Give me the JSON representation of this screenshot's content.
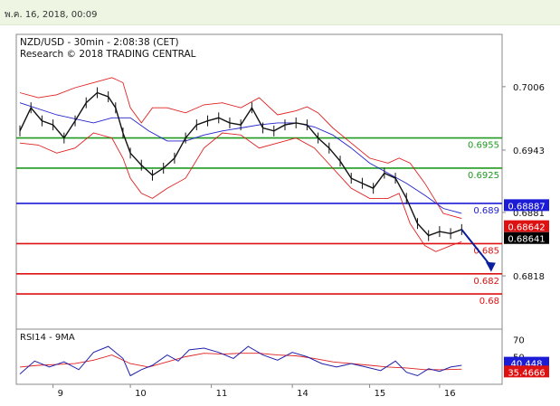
{
  "header": {
    "date_label": "พ.ค. 16, 2018, 00:09"
  },
  "chart_data": {
    "type": "line",
    "title": "NZD/USD - 30min - 2:08:38 (CET)",
    "subtitle": "Research © 2018 TRADING CENTRAL",
    "x_ticks": [
      "9",
      "10",
      "11",
      "14",
      "15",
      "16"
    ],
    "y_ticks": [
      "0.7006",
      "0.6943",
      "0.6881",
      "0.6818"
    ],
    "ylim": [
      0.6765,
      0.7058
    ],
    "levels": [
      {
        "label": "0.6955",
        "value": 0.6955,
        "color": "#1f9a1f"
      },
      {
        "label": "0.6925",
        "value": 0.6925,
        "color": "#1f9a1f"
      },
      {
        "label": "0.689",
        "value": 0.689,
        "color": "#1c1cd6"
      },
      {
        "label": "0.685",
        "value": 0.685,
        "color": "#dd1111"
      },
      {
        "label": "0.682",
        "value": 0.682,
        "color": "#dd1111"
      },
      {
        "label": "0.68",
        "value": 0.68,
        "color": "#dd1111"
      }
    ],
    "price_tags": [
      {
        "label": "0.68887",
        "value": 0.68887,
        "color": "#1c1cd6"
      },
      {
        "label": "0.68642",
        "value": 0.68642,
        "color": "#dd1111"
      },
      {
        "label": "0.68641",
        "value": 0.68641,
        "color": "#000000"
      }
    ],
    "price_series": [
      {
        "x": 0,
        "y": 0.6962
      },
      {
        "x": 0.3,
        "y": 0.6985
      },
      {
        "x": 0.6,
        "y": 0.6972
      },
      {
        "x": 0.9,
        "y": 0.6968
      },
      {
        "x": 1.2,
        "y": 0.6955
      },
      {
        "x": 1.5,
        "y": 0.6972
      },
      {
        "x": 1.8,
        "y": 0.699
      },
      {
        "x": 2.1,
        "y": 0.7
      },
      {
        "x": 2.4,
        "y": 0.6996
      },
      {
        "x": 2.6,
        "y": 0.6985
      },
      {
        "x": 2.8,
        "y": 0.696
      },
      {
        "x": 3.0,
        "y": 0.694
      },
      {
        "x": 3.3,
        "y": 0.6928
      },
      {
        "x": 3.6,
        "y": 0.6918
      },
      {
        "x": 3.9,
        "y": 0.6925
      },
      {
        "x": 4.2,
        "y": 0.6935
      },
      {
        "x": 4.5,
        "y": 0.6955
      },
      {
        "x": 4.8,
        "y": 0.6968
      },
      {
        "x": 5.1,
        "y": 0.6972
      },
      {
        "x": 5.4,
        "y": 0.6975
      },
      {
        "x": 5.7,
        "y": 0.697
      },
      {
        "x": 6.0,
        "y": 0.6968
      },
      {
        "x": 6.3,
        "y": 0.6985
      },
      {
        "x": 6.6,
        "y": 0.6965
      },
      {
        "x": 6.9,
        "y": 0.6962
      },
      {
        "x": 7.2,
        "y": 0.6968
      },
      {
        "x": 7.5,
        "y": 0.697
      },
      {
        "x": 7.8,
        "y": 0.6968
      },
      {
        "x": 8.1,
        "y": 0.6955
      },
      {
        "x": 8.4,
        "y": 0.6945
      },
      {
        "x": 8.7,
        "y": 0.6932
      },
      {
        "x": 9.0,
        "y": 0.6915
      },
      {
        "x": 9.3,
        "y": 0.691
      },
      {
        "x": 9.6,
        "y": 0.6905
      },
      {
        "x": 9.9,
        "y": 0.692
      },
      {
        "x": 10.2,
        "y": 0.6915
      },
      {
        "x": 10.5,
        "y": 0.6895
      },
      {
        "x": 10.8,
        "y": 0.687
      },
      {
        "x": 11.1,
        "y": 0.6858
      },
      {
        "x": 11.4,
        "y": 0.6862
      },
      {
        "x": 11.7,
        "y": 0.686
      },
      {
        "x": 12.0,
        "y": 0.6864
      }
    ],
    "bb_upper": [
      {
        "x": 0,
        "y": 0.7
      },
      {
        "x": 0.5,
        "y": 0.6995
      },
      {
        "x": 1.0,
        "y": 0.6998
      },
      {
        "x": 1.5,
        "y": 0.7005
      },
      {
        "x": 2.0,
        "y": 0.701
      },
      {
        "x": 2.5,
        "y": 0.7015
      },
      {
        "x": 2.8,
        "y": 0.701
      },
      {
        "x": 3.0,
        "y": 0.6985
      },
      {
        "x": 3.3,
        "y": 0.697
      },
      {
        "x": 3.6,
        "y": 0.6985
      },
      {
        "x": 4.0,
        "y": 0.6985
      },
      {
        "x": 4.5,
        "y": 0.698
      },
      {
        "x": 5.0,
        "y": 0.6988
      },
      {
        "x": 5.5,
        "y": 0.699
      },
      {
        "x": 6.0,
        "y": 0.6985
      },
      {
        "x": 6.5,
        "y": 0.6995
      },
      {
        "x": 7.0,
        "y": 0.6978
      },
      {
        "x": 7.5,
        "y": 0.6982
      },
      {
        "x": 7.8,
        "y": 0.6986
      },
      {
        "x": 8.1,
        "y": 0.698
      },
      {
        "x": 8.5,
        "y": 0.6965
      },
      {
        "x": 9.0,
        "y": 0.695
      },
      {
        "x": 9.5,
        "y": 0.6935
      },
      {
        "x": 10.0,
        "y": 0.693
      },
      {
        "x": 10.3,
        "y": 0.6935
      },
      {
        "x": 10.6,
        "y": 0.693
      },
      {
        "x": 11.0,
        "y": 0.691
      },
      {
        "x": 11.5,
        "y": 0.688
      },
      {
        "x": 12.0,
        "y": 0.6875
      }
    ],
    "bb_lower": [
      {
        "x": 0,
        "y": 0.695
      },
      {
        "x": 0.5,
        "y": 0.6948
      },
      {
        "x": 1.0,
        "y": 0.694
      },
      {
        "x": 1.5,
        "y": 0.6945
      },
      {
        "x": 2.0,
        "y": 0.696
      },
      {
        "x": 2.5,
        "y": 0.6955
      },
      {
        "x": 2.8,
        "y": 0.6935
      },
      {
        "x": 3.0,
        "y": 0.6915
      },
      {
        "x": 3.3,
        "y": 0.69
      },
      {
        "x": 3.6,
        "y": 0.6895
      },
      {
        "x": 4.0,
        "y": 0.6905
      },
      {
        "x": 4.5,
        "y": 0.6915
      },
      {
        "x": 5.0,
        "y": 0.6945
      },
      {
        "x": 5.5,
        "y": 0.696
      },
      {
        "x": 6.0,
        "y": 0.6958
      },
      {
        "x": 6.5,
        "y": 0.6945
      },
      {
        "x": 7.0,
        "y": 0.695
      },
      {
        "x": 7.5,
        "y": 0.6955
      },
      {
        "x": 8.0,
        "y": 0.6945
      },
      {
        "x": 8.5,
        "y": 0.6925
      },
      {
        "x": 9.0,
        "y": 0.6905
      },
      {
        "x": 9.5,
        "y": 0.6895
      },
      {
        "x": 10.0,
        "y": 0.6895
      },
      {
        "x": 10.3,
        "y": 0.69
      },
      {
        "x": 10.6,
        "y": 0.687
      },
      {
        "x": 11.0,
        "y": 0.6848
      },
      {
        "x": 11.3,
        "y": 0.6842
      },
      {
        "x": 11.7,
        "y": 0.6848
      },
      {
        "x": 12.0,
        "y": 0.6852
      }
    ],
    "ma_line": [
      {
        "x": 0,
        "y": 0.699
      },
      {
        "x": 1.0,
        "y": 0.6978
      },
      {
        "x": 2.0,
        "y": 0.697
      },
      {
        "x": 2.5,
        "y": 0.6975
      },
      {
        "x": 3.0,
        "y": 0.6975
      },
      {
        "x": 3.5,
        "y": 0.6962
      },
      {
        "x": 4.0,
        "y": 0.6952
      },
      {
        "x": 4.5,
        "y": 0.6952
      },
      {
        "x": 5.0,
        "y": 0.6958
      },
      {
        "x": 5.5,
        "y": 0.6962
      },
      {
        "x": 6.0,
        "y": 0.6965
      },
      {
        "x": 6.5,
        "y": 0.6968
      },
      {
        "x": 7.0,
        "y": 0.697
      },
      {
        "x": 7.5,
        "y": 0.697
      },
      {
        "x": 8.0,
        "y": 0.6966
      },
      {
        "x": 8.5,
        "y": 0.6958
      },
      {
        "x": 9.0,
        "y": 0.6945
      },
      {
        "x": 9.5,
        "y": 0.693
      },
      {
        "x": 10.0,
        "y": 0.692
      },
      {
        "x": 10.5,
        "y": 0.691
      },
      {
        "x": 11.0,
        "y": 0.6898
      },
      {
        "x": 11.5,
        "y": 0.6885
      },
      {
        "x": 12.0,
        "y": 0.688
      }
    ],
    "projection": [
      {
        "x": 12.0,
        "y": 0.6864
      },
      {
        "x": 12.8,
        "y": 0.6822
      }
    ],
    "rsi": {
      "label": "RSI14 - 9MA",
      "y_ticks": [
        "70",
        "50"
      ],
      "ylim": [
        18,
        82
      ],
      "value_tags": [
        {
          "label": "40.448",
          "value": 40.448,
          "color": "#1c1cd6"
        },
        {
          "label": "35.4666",
          "value": 35.4666,
          "color": "#dd1111"
        }
      ],
      "series": [
        {
          "x": 0,
          "y": 30
        },
        {
          "x": 0.4,
          "y": 45
        },
        {
          "x": 0.8,
          "y": 38
        },
        {
          "x": 1.2,
          "y": 44
        },
        {
          "x": 1.6,
          "y": 35
        },
        {
          "x": 2.0,
          "y": 55
        },
        {
          "x": 2.4,
          "y": 62
        },
        {
          "x": 2.8,
          "y": 48
        },
        {
          "x": 3.0,
          "y": 28
        },
        {
          "x": 3.3,
          "y": 35
        },
        {
          "x": 3.6,
          "y": 40
        },
        {
          "x": 4.0,
          "y": 52
        },
        {
          "x": 4.3,
          "y": 45
        },
        {
          "x": 4.6,
          "y": 58
        },
        {
          "x": 5.0,
          "y": 60
        },
        {
          "x": 5.4,
          "y": 55
        },
        {
          "x": 5.8,
          "y": 48
        },
        {
          "x": 6.2,
          "y": 62
        },
        {
          "x": 6.6,
          "y": 52
        },
        {
          "x": 7.0,
          "y": 46
        },
        {
          "x": 7.4,
          "y": 55
        },
        {
          "x": 7.8,
          "y": 50
        },
        {
          "x": 8.2,
          "y": 42
        },
        {
          "x": 8.6,
          "y": 38
        },
        {
          "x": 9.0,
          "y": 42
        },
        {
          "x": 9.4,
          "y": 38
        },
        {
          "x": 9.8,
          "y": 34
        },
        {
          "x": 10.2,
          "y": 45
        },
        {
          "x": 10.5,
          "y": 32
        },
        {
          "x": 10.8,
          "y": 28
        },
        {
          "x": 11.1,
          "y": 36
        },
        {
          "x": 11.4,
          "y": 33
        },
        {
          "x": 11.7,
          "y": 38
        },
        {
          "x": 12.0,
          "y": 40
        }
      ],
      "ma": [
        {
          "x": 0,
          "y": 38
        },
        {
          "x": 0.5,
          "y": 40
        },
        {
          "x": 1.0,
          "y": 41
        },
        {
          "x": 1.5,
          "y": 42
        },
        {
          "x": 2.0,
          "y": 46
        },
        {
          "x": 2.5,
          "y": 52
        },
        {
          "x": 3.0,
          "y": 42
        },
        {
          "x": 3.5,
          "y": 38
        },
        {
          "x": 4.0,
          "y": 44
        },
        {
          "x": 4.5,
          "y": 50
        },
        {
          "x": 5.0,
          "y": 54
        },
        {
          "x": 5.5,
          "y": 53
        },
        {
          "x": 6.0,
          "y": 54
        },
        {
          "x": 6.5,
          "y": 54
        },
        {
          "x": 7.0,
          "y": 52
        },
        {
          "x": 7.5,
          "y": 51
        },
        {
          "x": 8.0,
          "y": 48
        },
        {
          "x": 8.5,
          "y": 44
        },
        {
          "x": 9.0,
          "y": 42
        },
        {
          "x": 9.5,
          "y": 40
        },
        {
          "x": 10.0,
          "y": 38
        },
        {
          "x": 10.5,
          "y": 37
        },
        {
          "x": 11.0,
          "y": 35
        },
        {
          "x": 11.5,
          "y": 35
        },
        {
          "x": 12.0,
          "y": 35.5
        }
      ]
    }
  }
}
